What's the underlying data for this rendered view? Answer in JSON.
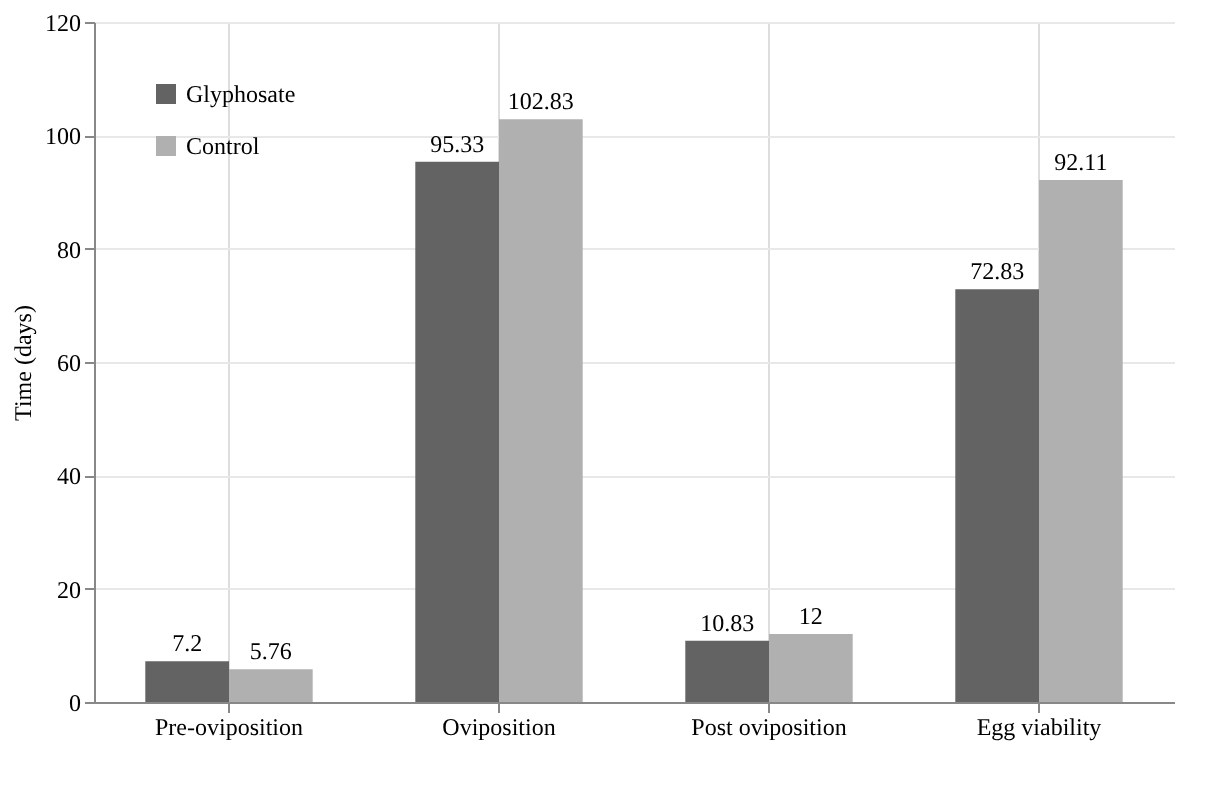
{
  "chart_data": {
    "type": "bar",
    "ylabel": "Time (days)",
    "categories": [
      "Pre-oviposition",
      "Oviposition",
      "Post oviposition",
      "Egg viability"
    ],
    "series": [
      {
        "name": "Glyphosate",
        "color": "#636363",
        "values": [
          7.2,
          95.33,
          10.83,
          72.83
        ]
      },
      {
        "name": "Control",
        "color": "#b0b0b0",
        "values": [
          5.76,
          102.83,
          12,
          92.11
        ]
      }
    ],
    "ylim": [
      0,
      120
    ],
    "yticks": [
      0,
      20,
      40,
      60,
      80,
      100,
      120
    ],
    "grid": true,
    "legend": "top left",
    "data_labels": true
  }
}
